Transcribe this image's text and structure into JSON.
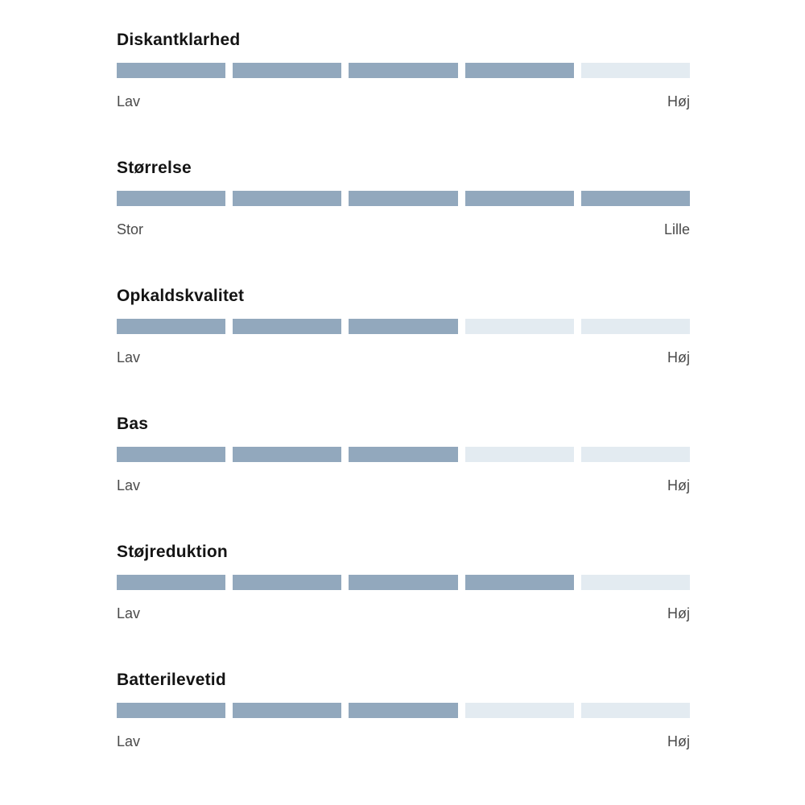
{
  "colors": {
    "filled_segment": "#92A8BD",
    "empty_segment": "#E3EBF1",
    "title_text": "#141414",
    "scale_label_text": "#4a4a4a",
    "background": "#ffffff"
  },
  "ratings": [
    {
      "title": "Diskantklarhed",
      "value": 4,
      "max": 5,
      "left_label": "Lav",
      "right_label": "Høj"
    },
    {
      "title": "Størrelse",
      "value": 5,
      "max": 5,
      "left_label": "Stor",
      "right_label": "Lille"
    },
    {
      "title": "Opkaldskvalitet",
      "value": 3,
      "max": 5,
      "left_label": "Lav",
      "right_label": "Høj"
    },
    {
      "title": "Bas",
      "value": 3,
      "max": 5,
      "left_label": "Lav",
      "right_label": "Høj"
    },
    {
      "title": "Støjreduktion",
      "value": 4,
      "max": 5,
      "left_label": "Lav",
      "right_label": "Høj"
    },
    {
      "title": "Batterilevetid",
      "value": 3,
      "max": 5,
      "left_label": "Lav",
      "right_label": "Høj"
    }
  ],
  "chart_data": {
    "type": "bar",
    "subtype": "segmented-rating-scale",
    "categories": [
      "Diskantklarhed",
      "Størrelse",
      "Opkaldskvalitet",
      "Bas",
      "Støjreduktion",
      "Batterilevetid"
    ],
    "values": [
      4,
      5,
      3,
      3,
      4,
      3
    ],
    "scale": {
      "min": 0,
      "max": 5,
      "segments": 5
    },
    "endpoint_labels": [
      [
        "Lav",
        "Høj"
      ],
      [
        "Stor",
        "Lille"
      ],
      [
        "Lav",
        "Høj"
      ],
      [
        "Lav",
        "Høj"
      ],
      [
        "Lav",
        "Høj"
      ],
      [
        "Lav",
        "Høj"
      ]
    ],
    "title": "",
    "xlabel": "",
    "ylabel": "",
    "legend": false,
    "grid": false
  }
}
